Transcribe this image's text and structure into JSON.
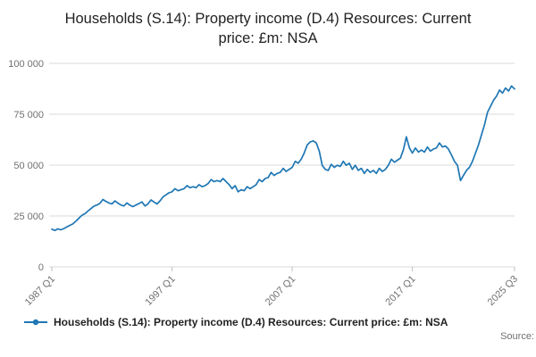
{
  "title": "Households (S.14): Property income (D.4) Resources: Current price: £m: NSA",
  "legend": {
    "label": "Households (S.14): Property income (D.4) Resources: Current price: £m: NSA"
  },
  "source_label": "Source:",
  "chart_data": {
    "type": "line",
    "title": "Households (S.14): Property income (D.4) Resources: Current price: £m: NSA",
    "xlabel": "",
    "ylabel": "",
    "color": "#1f77b4",
    "grid": "horizontal",
    "legend_position": "bottom",
    "ylim": [
      0,
      100000
    ],
    "y_ticks": [
      0,
      25000,
      50000,
      75000,
      100000
    ],
    "y_tick_labels": [
      "0",
      "25 000",
      "50 000",
      "75 000",
      "100 000"
    ],
    "x_start": "1987 Q1",
    "x_end": "2025 Q3",
    "x_frequency": "quarterly",
    "x_ticks": [
      {
        "label": "1987 Q1",
        "index": 0
      },
      {
        "label": "1997 Q1",
        "index": 40
      },
      {
        "label": "2007 Q1",
        "index": 80
      },
      {
        "label": "2017 Q1",
        "index": 120
      },
      {
        "label": "2025 Q3",
        "index": 154
      }
    ],
    "values": [
      18500,
      17900,
      18700,
      18200,
      18800,
      19600,
      20400,
      21100,
      22400,
      23900,
      25300,
      26100,
      27400,
      28600,
      29800,
      30400,
      31200,
      33100,
      32200,
      31400,
      30900,
      32400,
      31300,
      30400,
      29900,
      31400,
      30300,
      29600,
      30400,
      31100,
      31900,
      29900,
      30900,
      32900,
      31900,
      30900,
      32400,
      34400,
      35400,
      36400,
      36900,
      38400,
      37400,
      37900,
      38400,
      39900,
      38900,
      39400,
      38900,
      40400,
      39400,
      39900,
      40900,
      42900,
      41900,
      42400,
      41900,
      43400,
      41900,
      40400,
      38400,
      39900,
      36900,
      37900,
      37400,
      39400,
      38400,
      39400,
      40400,
      42900,
      41900,
      43400,
      43900,
      46400,
      44900,
      45900,
      46400,
      48400,
      46900,
      47900,
      48900,
      51900,
      50900,
      52900,
      55900,
      59900,
      61400,
      61900,
      60900,
      56900,
      49900,
      47900,
      47400,
      50400,
      48900,
      49900,
      49400,
      51900,
      49900,
      50900,
      47900,
      49900,
      47400,
      48400,
      45900,
      47900,
      46400,
      47400,
      45900,
      48400,
      46900,
      47900,
      49900,
      52900,
      51400,
      52400,
      53400,
      57400,
      63900,
      58400,
      55900,
      58400,
      56400,
      57400,
      56400,
      58900,
      56900,
      57900,
      58400,
      60900,
      58900,
      59400,
      57900,
      54900,
      51900,
      49900,
      42400,
      44900,
      47400,
      48900,
      51900,
      55900,
      59900,
      64900,
      69900,
      75900,
      78900,
      81900,
      83900,
      86900,
      85400,
      87900,
      86400,
      88900,
      87400
    ]
  }
}
